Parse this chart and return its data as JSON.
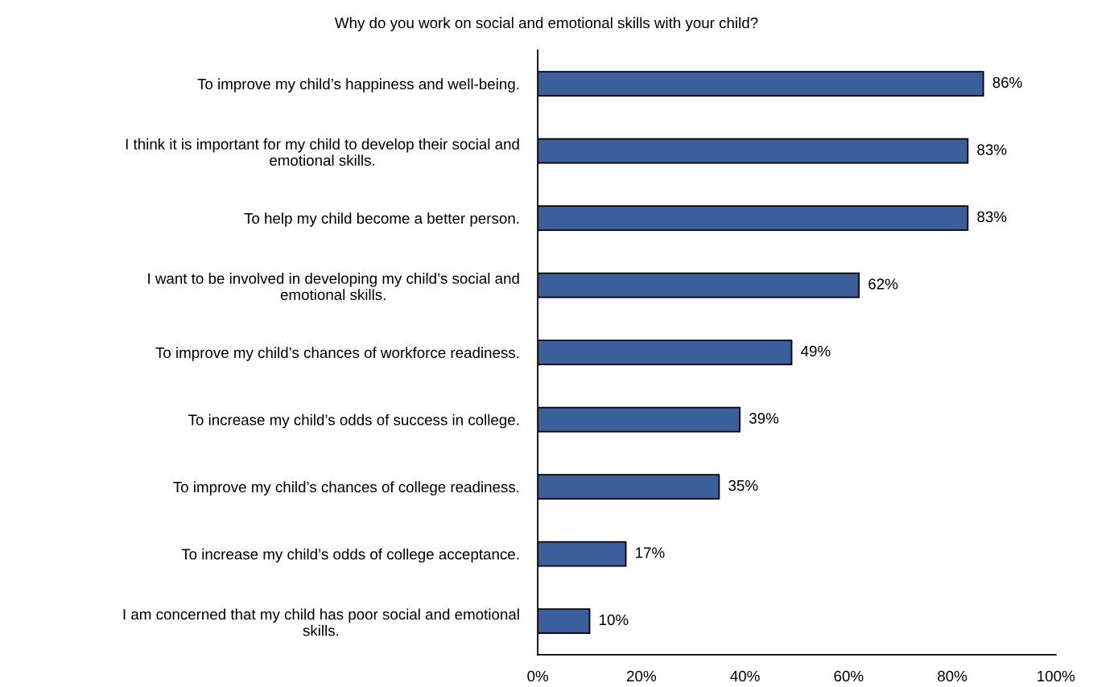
{
  "chart_data": {
    "type": "bar",
    "orientation": "horizontal",
    "title": "Why do you work on social and emotional skills with your child?",
    "categories": [
      "To improve my child’s happiness and well-being.",
      "I think it is important for my child to develop their social and\nemotional skills.",
      "To help my child become a better person.",
      "I want to be involved in developing my child’s social and\nemotional skills.",
      "To improve my child’s chances of workforce readiness.",
      "To increase my child’s odds of success in college.",
      "To improve my child’s chances of college readiness.",
      "To increase my child’s odds of college acceptance.",
      "I am concerned that my child has poor social and emotional\nskills."
    ],
    "values": [
      86,
      83,
      83,
      62,
      49,
      39,
      35,
      17,
      10
    ],
    "value_labels": [
      "86%",
      "83%",
      "83%",
      "62%",
      "49%",
      "39%",
      "35%",
      "17%",
      "10%"
    ],
    "color": "#3b5f9b",
    "xlim": [
      0,
      100
    ],
    "xticks": [
      {
        "value": 0,
        "label": "0%"
      },
      {
        "value": 20,
        "label": "20%"
      },
      {
        "value": 40,
        "label": "40%"
      },
      {
        "value": 60,
        "label": "60%"
      },
      {
        "value": 80,
        "label": "80%"
      },
      {
        "value": 100,
        "label": "100%"
      }
    ],
    "grid": false,
    "legend": false
  }
}
